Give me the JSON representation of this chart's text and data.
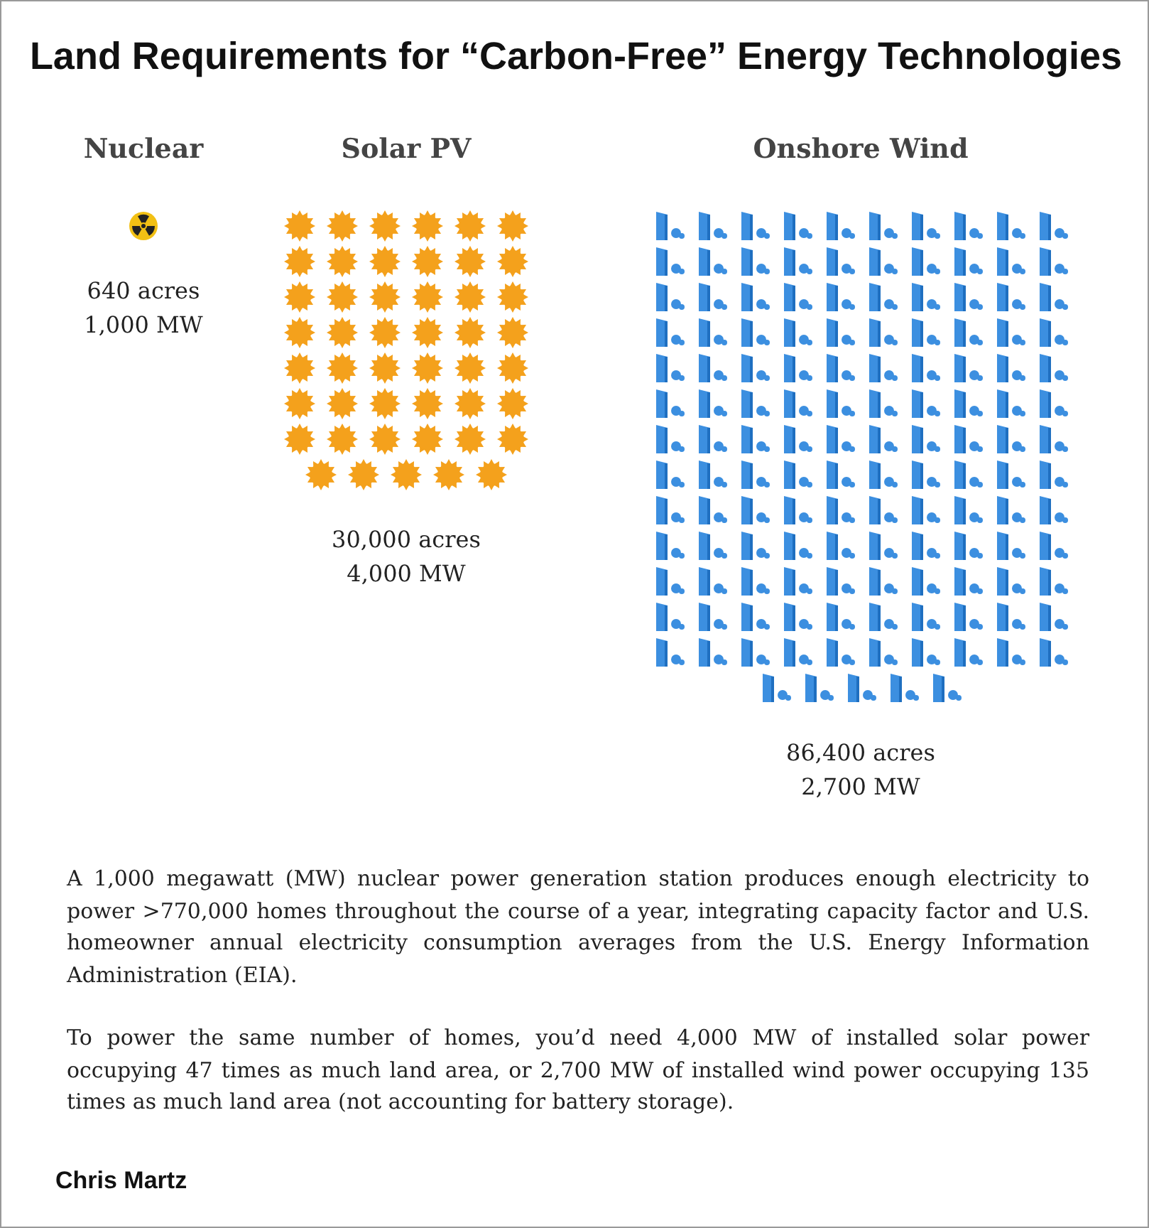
{
  "chart_data": {
    "type": "other",
    "title": "Land Requirements for “Carbon-Free” Energy Technologies",
    "categories": [
      "Nuclear",
      "Solar PV",
      "Onshore Wind"
    ],
    "colors": [
      "#f2c014",
      "#f4a11c",
      "#3c8fe0"
    ],
    "series": [
      {
        "values": [
          640,
          30000,
          86400
        ],
        "value_labels": [
          "640 acres",
          "30,000 acres",
          "86,400 acres"
        ]
      },
      {
        "values": [
          1000,
          4000,
          2700
        ],
        "value_labels": [
          "1,000 MW",
          "4,000 MW",
          "2,700 MW"
        ]
      }
    ],
    "annotations": [
      "A 1,000 megawatt (MW) nuclear power generation station produces enough electricity to power >770,000 homes throughout the course of a year, integrating capacity factor and U.S. homeowner annual electricity consumption averages from the U.S. Energy Information Administration (EIA).",
      "To power the same number of homes, you’d need 4,000 MW of installed solar power occupying 47 times as much land area, or 2,700 MW of installed wind power occupying 135 times as much land area (not accounting for battery storage).",
      "Chris Martz"
    ]
  }
}
